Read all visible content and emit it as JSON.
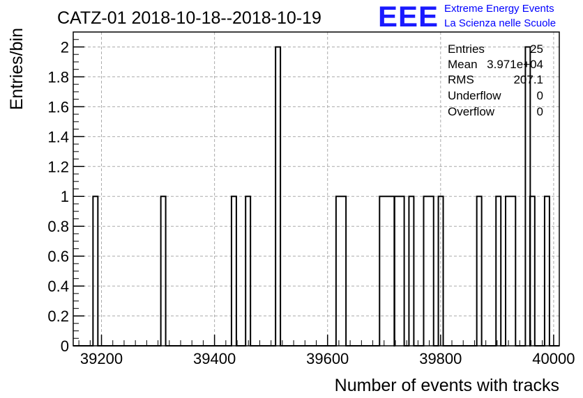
{
  "chart_data": {
    "type": "bar",
    "style": "step-histogram",
    "title": "CATZ-01 2018-10-18--2018-10-19",
    "xlabel": "Number of events with tracks",
    "ylabel": "Entries/bin",
    "xlim": [
      39150,
      40010
    ],
    "ylim": [
      0,
      2.1
    ],
    "grid": true,
    "xticks": [
      39200,
      39400,
      39600,
      39800,
      40000
    ],
    "yticks": [
      0,
      0.2,
      0.4,
      0.6,
      0.8,
      1,
      1.2,
      1.4,
      1.6,
      1.8,
      2
    ],
    "bin_width": 8.6,
    "bins": [
      {
        "x": 39185,
        "value": 1
      },
      {
        "x": 39305,
        "value": 1
      },
      {
        "x": 39430,
        "value": 1
      },
      {
        "x": 39455,
        "value": 1
      },
      {
        "x": 39508,
        "value": 2
      },
      {
        "x": 39615,
        "value": 1
      },
      {
        "x": 39624,
        "value": 1
      },
      {
        "x": 39692,
        "value": 1
      },
      {
        "x": 39701,
        "value": 1
      },
      {
        "x": 39710,
        "value": 1
      },
      {
        "x": 39718,
        "value": 1
      },
      {
        "x": 39727,
        "value": 1
      },
      {
        "x": 39744,
        "value": 1
      },
      {
        "x": 39770,
        "value": 1
      },
      {
        "x": 39779,
        "value": 1
      },
      {
        "x": 39796,
        "value": 1
      },
      {
        "x": 39864,
        "value": 1
      },
      {
        "x": 39898,
        "value": 1
      },
      {
        "x": 39915,
        "value": 1
      },
      {
        "x": 39924,
        "value": 1
      },
      {
        "x": 39950,
        "value": 2
      },
      {
        "x": 39958,
        "value": 1
      },
      {
        "x": 39984,
        "value": 1
      }
    ],
    "color": "#000000",
    "stats": [
      {
        "label": "Entries",
        "value": "25"
      },
      {
        "label": "Mean",
        "value": "3.971e+04"
      },
      {
        "label": "RMS",
        "value": "207.1"
      },
      {
        "label": "Underflow",
        "value": "0"
      },
      {
        "label": "Overflow",
        "value": "0"
      }
    ]
  },
  "logo": {
    "mark": "EEE",
    "line1": "Extreme Energy Events",
    "line2": "La Scienza nelle Scuole",
    "color": "#0000ff"
  }
}
